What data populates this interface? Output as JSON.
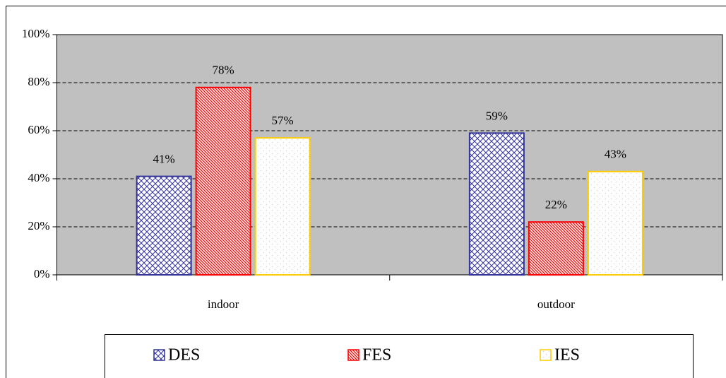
{
  "chart_data": {
    "type": "bar",
    "categories": [
      "indoor",
      "outdoor"
    ],
    "series": [
      {
        "name": "DES",
        "color": "#333399",
        "pattern": "crosshatch",
        "values": [
          41,
          59
        ],
        "value_labels": [
          "41%",
          "59%"
        ]
      },
      {
        "name": "FES",
        "color": "#ff0000",
        "pattern": "diagonal",
        "values": [
          78,
          22
        ],
        "value_labels": [
          "78%",
          "22%"
        ]
      },
      {
        "name": "IES",
        "color": "#ffcc00",
        "pattern": "dots",
        "values": [
          57,
          43
        ],
        "value_labels": [
          "57%",
          "43%"
        ]
      }
    ],
    "ylim": [
      0,
      100
    ],
    "yticks": [
      {
        "value": 0,
        "label": "0%"
      },
      {
        "value": 20,
        "label": "20%"
      },
      {
        "value": 40,
        "label": "40%"
      },
      {
        "value": 60,
        "label": "60%"
      },
      {
        "value": 80,
        "label": "80%"
      },
      {
        "value": 100,
        "label": "100%"
      }
    ],
    "grid": true,
    "plot_background": "#c0c0c0",
    "legend": "bottom"
  }
}
